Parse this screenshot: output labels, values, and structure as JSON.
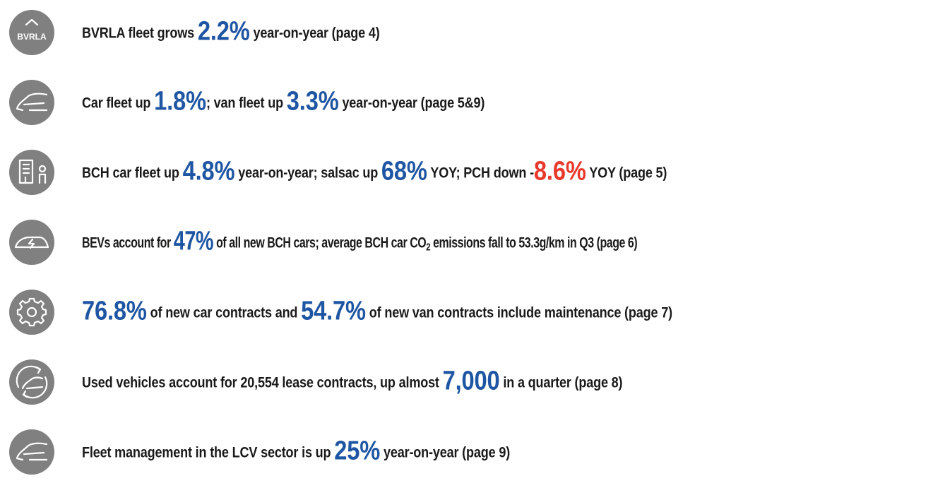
{
  "rows": [
    {
      "icon_label": "BVRLA",
      "parts": [
        "BVRLA fleet grows ",
        "2.2%",
        " year-on-year (page 4)"
      ]
    },
    {
      "parts": [
        "Car fleet up ",
        "1.8%",
        "; van fleet up ",
        "3.3%",
        " year-on-year (page 5&9)"
      ]
    },
    {
      "parts": [
        "BCH car fleet up ",
        "4.8%",
        " year-on-year; salsac up ",
        "68%",
        " YOY; PCH down -",
        "8.6%",
        " YOY (page 5)"
      ]
    },
    {
      "parts": [
        "BEVs account for ",
        "47%",
        " of all new BCH cars; average BCH car CO",
        "2",
        " emissions fall to 53.3g/km in Q3 (page 6)"
      ]
    },
    {
      "parts": [
        "76.8%",
        " of new car contracts and ",
        "54.7%",
        " of new van contracts include maintenance (page 7)"
      ]
    },
    {
      "parts": [
        "Used vehicles account for 20,554 lease contracts, up almost ",
        "7,000",
        " in a quarter (page 8)"
      ]
    },
    {
      "parts": [
        "Fleet management in the LCV sector is up ",
        "25%",
        " year-on-year (page 9)"
      ]
    }
  ]
}
